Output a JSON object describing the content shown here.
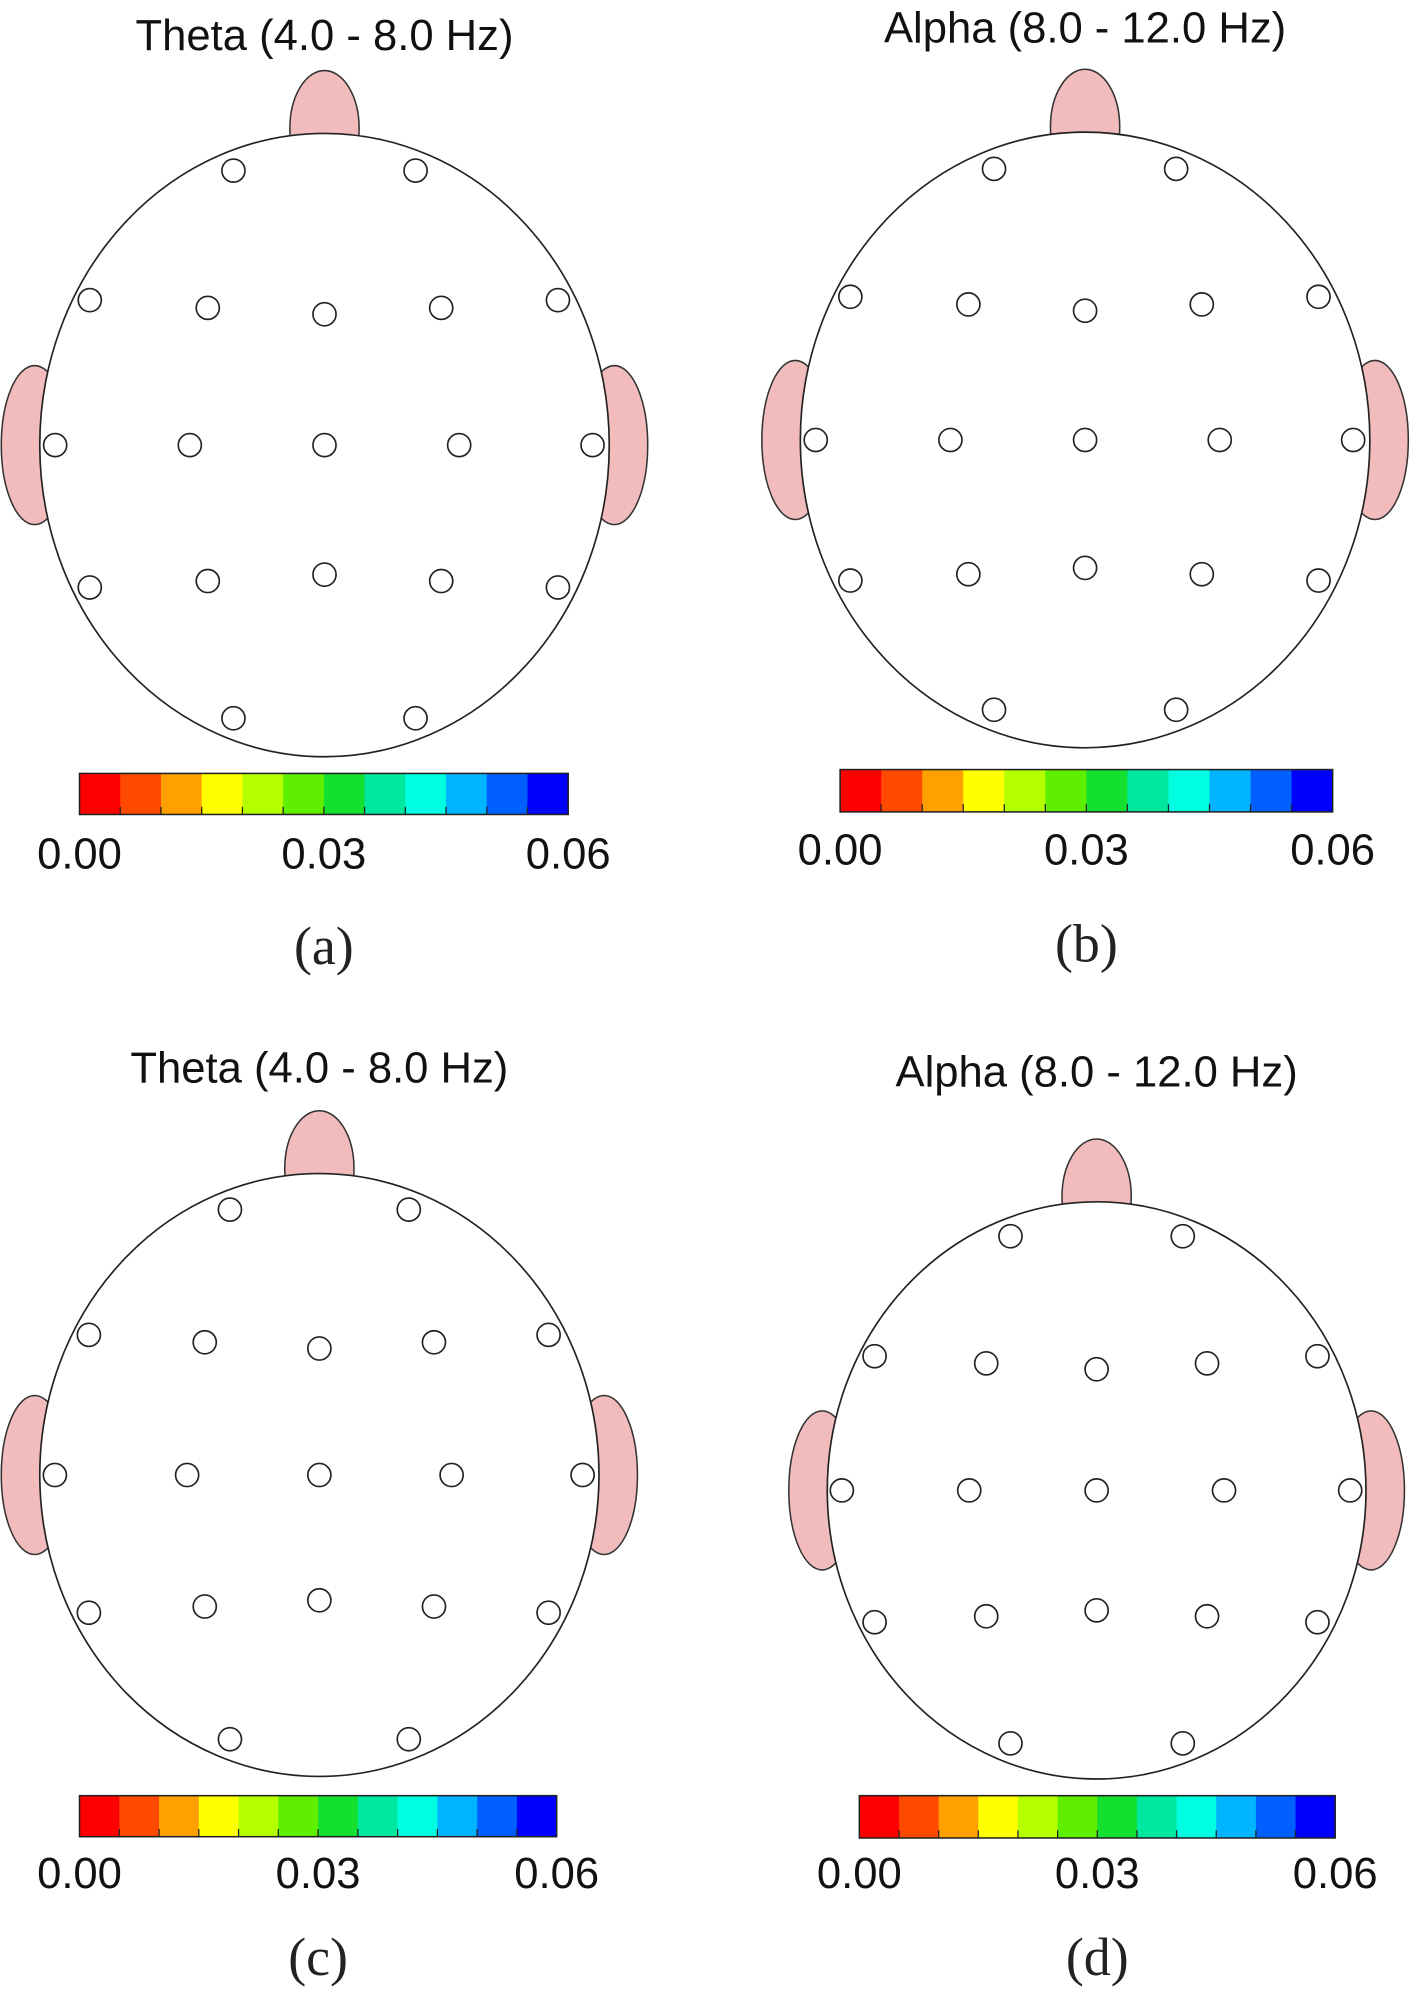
{
  "panels": [
    {
      "title": "Theta (4.0 - 8.0 Hz)",
      "label": "(a)",
      "colorbar_ticks": [
        "0.00",
        "0.03",
        "0.06"
      ]
    },
    {
      "title": "Alpha (8.0 - 12.0 Hz)",
      "label": "(b)",
      "colorbar_ticks": [
        "0.00",
        "0.03",
        "0.06"
      ]
    },
    {
      "title": "Theta (4.0 - 8.0 Hz)",
      "label": "(c)",
      "colorbar_ticks": [
        "0.00",
        "0.03",
        "0.06"
      ]
    },
    {
      "title": "Alpha (8.0 - 12.0 Hz)",
      "label": "(d)",
      "colorbar_ticks": [
        "0.00",
        "0.03",
        "0.06"
      ]
    }
  ],
  "colorbar_colors": [
    "#ff0000",
    "#ff4800",
    "#ffa000",
    "#ffff00",
    "#b4ff00",
    "#5ef000",
    "#14e030",
    "#00e8a0",
    "#00ffe0",
    "#00b4ff",
    "#0060ff",
    "#0000ff"
  ]
}
